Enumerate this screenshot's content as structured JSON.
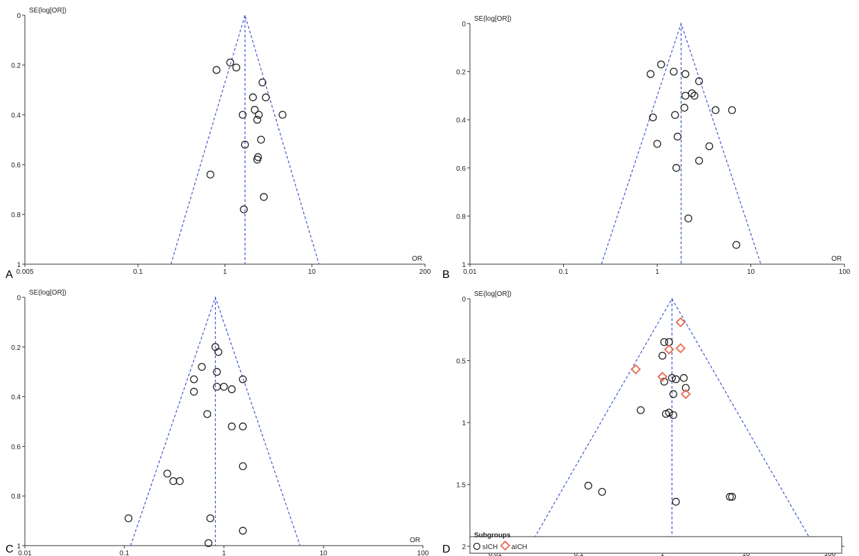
{
  "figure": {
    "legend": {
      "title": "Subgroups",
      "entries": [
        {
          "label": "sICH",
          "marker": "circle",
          "color": "#222222"
        },
        {
          "label": "aICH",
          "marker": "diamond",
          "color": "#e8735a"
        }
      ]
    }
  },
  "colors": {
    "funnel": "#3b55d6",
    "circle": "#222222",
    "diamond": "#e8735a",
    "axis": "#333333"
  },
  "chart_data": [
    {
      "panel": "A",
      "type": "scatter",
      "subtype": "funnel plot",
      "xlabel": "OR",
      "ylabel": "SE(log[OR])",
      "xscale": "log",
      "xlim": [
        0.005,
        200
      ],
      "xticks": [
        0.005,
        0.1,
        1,
        10,
        200
      ],
      "xtick_labels": [
        "0.005",
        "0.1",
        "1",
        "10",
        "200"
      ],
      "ylim": [
        0,
        1
      ],
      "yticks": [
        0,
        0.2,
        0.4,
        0.6,
        0.8,
        1
      ],
      "ytick_labels": [
        "0",
        "0.2",
        "0.4",
        "0.6",
        "0.8",
        "1"
      ],
      "pooled_or": 1.7,
      "points": [
        {
          "or": 1.15,
          "se": 0.19
        },
        {
          "or": 0.8,
          "se": 0.22
        },
        {
          "or": 1.35,
          "se": 0.21
        },
        {
          "or": 2.7,
          "se": 0.27
        },
        {
          "or": 2.1,
          "se": 0.33
        },
        {
          "or": 2.95,
          "se": 0.33
        },
        {
          "or": 2.2,
          "se": 0.38
        },
        {
          "or": 1.6,
          "se": 0.4
        },
        {
          "or": 2.45,
          "se": 0.4
        },
        {
          "or": 2.35,
          "se": 0.42
        },
        {
          "or": 4.6,
          "se": 0.4
        },
        {
          "or": 2.6,
          "se": 0.5
        },
        {
          "or": 1.7,
          "se": 0.52
        },
        {
          "or": 2.4,
          "se": 0.57
        },
        {
          "or": 2.35,
          "se": 0.58
        },
        {
          "or": 0.68,
          "se": 0.64
        },
        {
          "or": 2.8,
          "se": 0.73
        },
        {
          "or": 1.65,
          "se": 0.78
        }
      ]
    },
    {
      "panel": "B",
      "type": "scatter",
      "subtype": "funnel plot",
      "xlabel": "OR",
      "ylabel": "SE(log[OR])",
      "xscale": "log",
      "xlim": [
        0.01,
        100
      ],
      "xticks": [
        0.01,
        0.1,
        1,
        10,
        100
      ],
      "xtick_labels": [
        "0.01",
        "0.1",
        "1",
        "10",
        "100"
      ],
      "ylim": [
        0,
        1
      ],
      "yticks": [
        0,
        0.2,
        0.4,
        0.6,
        0.8,
        1
      ],
      "ytick_labels": [
        "0",
        "0.2",
        "0.4",
        "0.6",
        "0.8",
        "1"
      ],
      "pooled_or": 1.8,
      "points": [
        {
          "or": 1.1,
          "se": 0.17
        },
        {
          "or": 0.85,
          "se": 0.21
        },
        {
          "or": 1.5,
          "se": 0.2
        },
        {
          "or": 2.0,
          "se": 0.21
        },
        {
          "or": 2.8,
          "se": 0.24
        },
        {
          "or": 2.35,
          "se": 0.29
        },
        {
          "or": 2.5,
          "se": 0.3
        },
        {
          "or": 2.0,
          "se": 0.3
        },
        {
          "or": 1.95,
          "se": 0.35
        },
        {
          "or": 4.2,
          "se": 0.36
        },
        {
          "or": 6.3,
          "se": 0.36
        },
        {
          "or": 1.55,
          "se": 0.38
        },
        {
          "or": 0.9,
          "se": 0.39
        },
        {
          "or": 1.65,
          "se": 0.47
        },
        {
          "or": 1.0,
          "se": 0.5
        },
        {
          "or": 3.6,
          "se": 0.51
        },
        {
          "or": 2.8,
          "se": 0.57
        },
        {
          "or": 1.6,
          "se": 0.6
        },
        {
          "or": 2.15,
          "se": 0.81
        },
        {
          "or": 7.0,
          "se": 0.92
        }
      ]
    },
    {
      "panel": "C",
      "type": "scatter",
      "subtype": "funnel plot",
      "xlabel": "OR",
      "ylabel": "SE(log[OR])",
      "xscale": "log",
      "xlim": [
        0.01,
        100
      ],
      "xticks": [
        0.01,
        0.1,
        1,
        10,
        100
      ],
      "xtick_labels": [
        "0.01",
        "0.1",
        "1",
        "10",
        "100"
      ],
      "ylim": [
        0,
        1
      ],
      "yticks": [
        0,
        0.2,
        0.4,
        0.6,
        0.8,
        1
      ],
      "ytick_labels": [
        "0",
        "0.2",
        "0.4",
        "0.6",
        "0.8",
        "1"
      ],
      "pooled_or": 0.82,
      "points": [
        {
          "or": 0.82,
          "se": 0.2
        },
        {
          "or": 0.88,
          "se": 0.22
        },
        {
          "or": 0.6,
          "se": 0.28
        },
        {
          "or": 0.85,
          "se": 0.3
        },
        {
          "or": 0.5,
          "se": 0.33
        },
        {
          "or": 1.55,
          "se": 0.33
        },
        {
          "or": 1.0,
          "se": 0.36
        },
        {
          "or": 0.85,
          "se": 0.36
        },
        {
          "or": 1.2,
          "se": 0.37
        },
        {
          "or": 0.5,
          "se": 0.38
        },
        {
          "or": 0.68,
          "se": 0.47
        },
        {
          "or": 1.2,
          "se": 0.52
        },
        {
          "or": 1.55,
          "se": 0.52
        },
        {
          "or": 1.55,
          "se": 0.68
        },
        {
          "or": 0.27,
          "se": 0.71
        },
        {
          "or": 0.31,
          "se": 0.74
        },
        {
          "or": 0.36,
          "se": 0.74
        },
        {
          "or": 0.11,
          "se": 0.89
        },
        {
          "or": 0.73,
          "se": 0.89
        },
        {
          "or": 1.55,
          "se": 0.94
        },
        {
          "or": 0.7,
          "se": 0.99
        }
      ]
    },
    {
      "panel": "D",
      "type": "scatter",
      "subtype": "funnel plot",
      "xlabel": "OR",
      "ylabel": "SE(log[OR])",
      "xscale": "log",
      "xlim": [
        0.005,
        150
      ],
      "xticks": [
        0.01,
        0.1,
        1,
        10,
        100
      ],
      "xtick_labels": [
        "0.01",
        "0.1",
        "1",
        "10",
        "100"
      ],
      "ylim": [
        0,
        2
      ],
      "yticks": [
        0,
        0.5,
        1,
        1.5,
        2
      ],
      "ytick_labels": [
        "0",
        "0.5",
        "1",
        "1.5",
        "2"
      ],
      "pooled_or": 1.3,
      "series": [
        {
          "name": "sICH",
          "marker": "circle",
          "points": [
            {
              "or": 1.05,
              "se": 0.35
            },
            {
              "or": 1.2,
              "se": 0.35
            },
            {
              "or": 1.0,
              "se": 0.46
            },
            {
              "or": 1.05,
              "se": 0.67
            },
            {
              "or": 1.3,
              "se": 0.64
            },
            {
              "or": 1.45,
              "se": 0.65
            },
            {
              "or": 1.8,
              "se": 0.64
            },
            {
              "or": 1.9,
              "se": 0.72
            },
            {
              "or": 1.35,
              "se": 0.77
            },
            {
              "or": 0.55,
              "se": 0.9
            },
            {
              "or": 1.1,
              "se": 0.93
            },
            {
              "or": 1.2,
              "se": 0.92
            },
            {
              "or": 1.35,
              "se": 0.94
            },
            {
              "or": 0.13,
              "se": 1.51
            },
            {
              "or": 0.19,
              "se": 1.56
            },
            {
              "or": 1.45,
              "se": 1.64
            },
            {
              "or": 6.4,
              "se": 1.6
            },
            {
              "or": 6.8,
              "se": 1.6
            }
          ]
        },
        {
          "name": "aICH",
          "marker": "diamond",
          "points": [
            {
              "or": 1.65,
              "se": 0.19
            },
            {
              "or": 1.65,
              "se": 0.4
            },
            {
              "or": 1.2,
              "se": 0.41
            },
            {
              "or": 0.48,
              "se": 0.57
            },
            {
              "or": 1.0,
              "se": 0.63
            },
            {
              "or": 1.9,
              "se": 0.77
            }
          ]
        }
      ]
    }
  ]
}
